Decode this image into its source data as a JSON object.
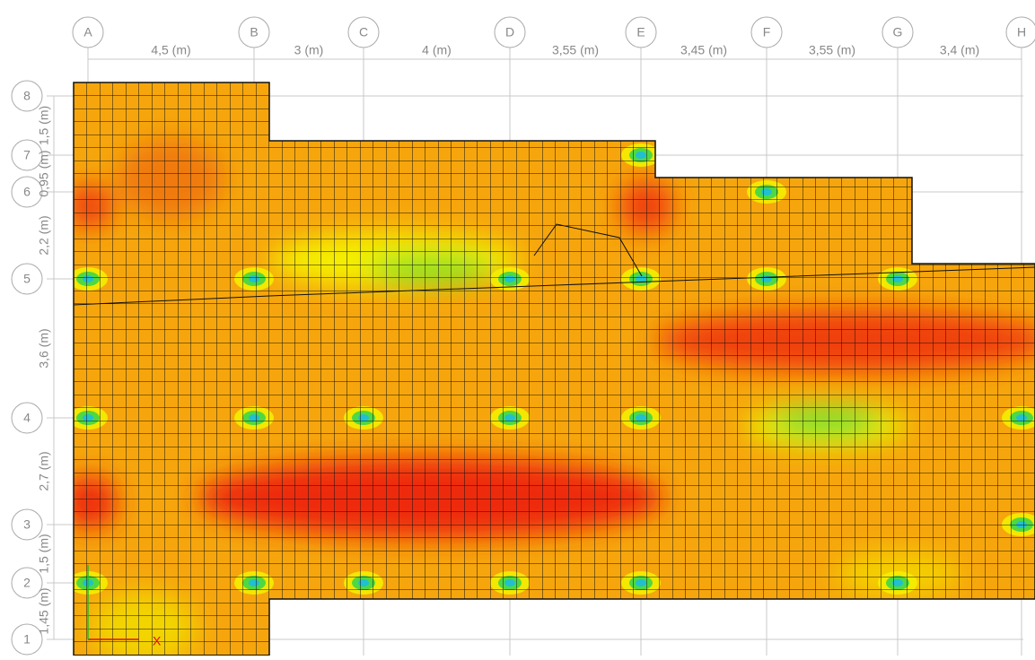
{
  "grid": {
    "columns": [
      "A",
      "B",
      "C",
      "D",
      "E",
      "F",
      "G",
      "H"
    ],
    "rows": [
      "8",
      "7",
      "6",
      "5",
      "4",
      "3",
      "2",
      "1"
    ],
    "x_spacings": [
      "4,5 (m)",
      "3 (m)",
      "4 (m)",
      "3,55 (m)",
      "3,45 (m)",
      "3,55 (m)",
      "3,4 (m)"
    ],
    "y_spacings": [
      "1,5 (m)",
      "0,95 (m)",
      "2,2 (m)",
      "3,6 (m)",
      "2,7 (m)",
      "1,5 (m)",
      "1,45 (m)"
    ],
    "axis_label": "X"
  }
}
